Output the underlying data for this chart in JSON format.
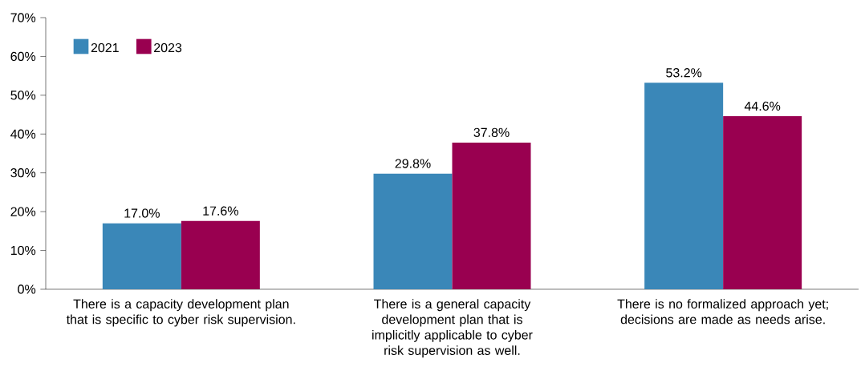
{
  "chart_data": {
    "type": "bar",
    "categories": [
      "There is a capacity development plan that is specific to cyber risk supervision.",
      "There is a general capacity development plan that is implicitly applicable to cyber risk supervision as well.",
      "There is no formalized approach yet; decisions are made as needs arise."
    ],
    "series": [
      {
        "name": "2021",
        "color": "#3a87b8",
        "values": [
          17.0,
          29.8,
          53.2
        ],
        "value_labels": [
          "17.0%",
          "29.8%",
          "53.2%"
        ]
      },
      {
        "name": "2023",
        "color": "#990050",
        "values": [
          17.6,
          37.8,
          44.6
        ],
        "value_labels": [
          "17.6%",
          "37.8%",
          "44.6%"
        ]
      }
    ],
    "ylim": [
      0,
      70
    ],
    "yticks": [
      {
        "value": 0,
        "label": "0%"
      },
      {
        "value": 10,
        "label": "10%"
      },
      {
        "value": 20,
        "label": "20%"
      },
      {
        "value": 30,
        "label": "30%"
      },
      {
        "value": 40,
        "label": "40%"
      },
      {
        "value": 50,
        "label": "50%"
      },
      {
        "value": 60,
        "label": "60%"
      },
      {
        "value": 70,
        "label": "70%"
      }
    ],
    "grid": false,
    "legend": "top left"
  }
}
